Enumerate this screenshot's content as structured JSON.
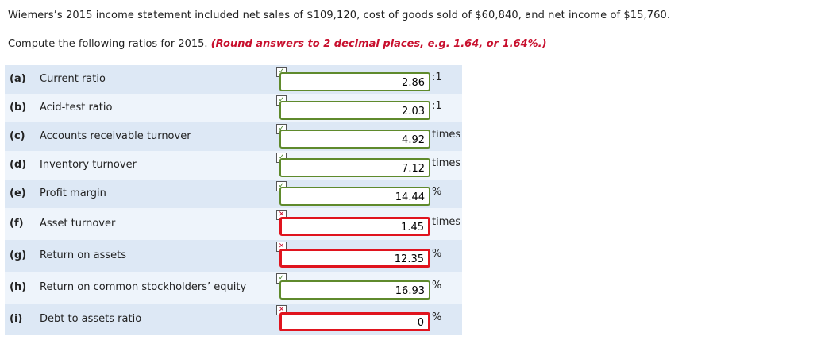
{
  "problem": {
    "intro": "Wiemers’s 2015 income statement included net sales of $109,120, cost of goods sold of $60,840, and net income of $15,760.",
    "instruction": "Compute the following ratios for 2015.",
    "hint": "(Round answers to 2 decimal places, e.g. 1.64, or 1.64%.)"
  },
  "rows": [
    {
      "letter": "(a)",
      "label": "Current ratio",
      "value": "2.86",
      "unit": ":1",
      "status": "correct"
    },
    {
      "letter": "(b)",
      "label": "Acid-test ratio",
      "value": "2.03",
      "unit": ":1",
      "status": "correct"
    },
    {
      "letter": "(c)",
      "label": "Accounts receivable turnover",
      "value": "4.92",
      "unit": "times",
      "status": "correct"
    },
    {
      "letter": "(d)",
      "label": "Inventory turnover",
      "value": "7.12",
      "unit": "times",
      "status": "correct"
    },
    {
      "letter": "(e)",
      "label": "Profit margin",
      "value": "14.44",
      "unit": "%",
      "status": "correct"
    },
    {
      "letter": "(f)",
      "label": "Asset turnover",
      "value": "1.45",
      "unit": "times",
      "status": "incorrect"
    },
    {
      "letter": "(g)",
      "label": "Return on assets",
      "value": "12.35",
      "unit": "%",
      "status": "incorrect"
    },
    {
      "letter": "(h)",
      "label": "Return on common stockholders’ equity",
      "value": "16.93",
      "unit": "%",
      "status": "correct"
    },
    {
      "letter": "(i)",
      "label": "Debt to assets ratio",
      "value": "0",
      "unit": "%",
      "status": "incorrect"
    }
  ],
  "colors": {
    "correct": "#5f8a2c",
    "incorrect": "#e0141e",
    "hint": "#c8102e",
    "row_shade": "#dde8f5"
  }
}
